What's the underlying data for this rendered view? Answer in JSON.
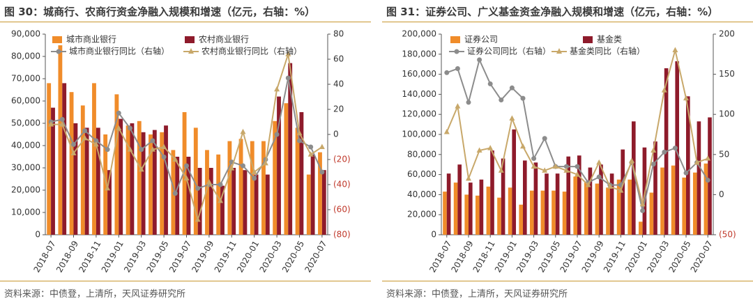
{
  "colors": {
    "bar1": "#f08c2a",
    "bar2": "#8e1b2b",
    "line1": "#8c8c8c",
    "line2": "#c8a86a",
    "rule": "#c8962d",
    "negative_tick": "#c0392b"
  },
  "left": {
    "title": "图 30：城商行、农商行资金净融入规模和增速（亿元，右轴：%）",
    "source": "资料来源：中债登，上清所，天风证券研究所"
  },
  "right": {
    "title": "图 31：证券公司、广义基金资金净融入规模和增速（亿元，右轴：%）",
    "source": "资料来源：中债登，上清所，天风证券研究所"
  },
  "chart_data": [
    {
      "type": "bar",
      "categories": [
        "2018-07",
        "2018-08",
        "2018-09",
        "2018-10",
        "2018-11",
        "2018-12",
        "2019-01",
        "2019-02",
        "2019-03",
        "2019-04",
        "2019-05",
        "2019-06",
        "2019-07",
        "2019-08",
        "2019-09",
        "2019-10",
        "2019-11",
        "2019-12",
        "2020-01",
        "2020-02",
        "2020-03",
        "2020-04",
        "2020-05",
        "2020-06",
        "2020-07"
      ],
      "x_tick_labels": [
        "2018-07",
        "2018-09",
        "2018-11",
        "2019-01",
        "2019-03",
        "2019-05",
        "2019-07",
        "2019-09",
        "2019-11",
        "2020-01",
        "2020-03",
        "2020-05",
        "2020-07"
      ],
      "series": [
        {
          "name": "城市商业银行",
          "kind": "bar",
          "axis": "left",
          "color": "#f08c2a",
          "values": [
            68000,
            85000,
            64000,
            58000,
            68000,
            45000,
            63000,
            49000,
            51000,
            45000,
            46000,
            38000,
            55000,
            48000,
            38000,
            36000,
            42000,
            43000,
            42000,
            42000,
            51000,
            59000,
            48000,
            27000,
            37000
          ]
        },
        {
          "name": "农村商业银行",
          "kind": "bar",
          "axis": "left",
          "color": "#8e1b2b",
          "values": [
            57000,
            68000,
            50000,
            48000,
            48000,
            29000,
            52000,
            50000,
            46000,
            47000,
            49000,
            35000,
            35000,
            30000,
            30000,
            22000,
            30000,
            29000,
            27000,
            27000,
            62000,
            77000,
            55000,
            36000,
            29000
          ]
        },
        {
          "name": "城市商业银行同比（右轴）",
          "kind": "line",
          "axis": "right",
          "color": "#8c8c8c",
          "marker": "circle",
          "values": [
            10,
            12,
            -8,
            3,
            -5,
            -12,
            17,
            5,
            -12,
            -5,
            -18,
            -47,
            -25,
            -43,
            -40,
            -40,
            -22,
            -25,
            -35,
            -20,
            0,
            45,
            -5,
            -10,
            -30
          ]
        },
        {
          "name": "农村商业银行同比（右轴）",
          "kind": "line",
          "axis": "right",
          "color": "#c8a86a",
          "marker": "triangle",
          "values": [
            8,
            8,
            -15,
            -3,
            -8,
            -43,
            5,
            -12,
            -28,
            -12,
            -10,
            -20,
            -35,
            -68,
            -38,
            -53,
            -27,
            2,
            -30,
            -23,
            36,
            64,
            1,
            -16,
            -10
          ]
        }
      ],
      "y_left": {
        "min": 0,
        "max": 90000,
        "step": 10000,
        "ticks": [
          "0",
          "10,000",
          "20,000",
          "30,000",
          "40,000",
          "50,000",
          "60,000",
          "70,000",
          "80,000",
          "90,000"
        ]
      },
      "y_right": {
        "min": -80,
        "max": 80,
        "step": 20,
        "ticks": [
          "(80)",
          "(60)",
          "(40)",
          "(20)",
          "0",
          "20",
          "40",
          "60",
          "80"
        ]
      },
      "legend": "top",
      "grid": false
    },
    {
      "type": "bar",
      "categories": [
        "2018-07",
        "2018-08",
        "2018-09",
        "2018-10",
        "2018-11",
        "2018-12",
        "2019-01",
        "2019-02",
        "2019-03",
        "2019-04",
        "2019-05",
        "2019-06",
        "2019-07",
        "2019-08",
        "2019-09",
        "2019-10",
        "2019-11",
        "2019-12",
        "2020-01",
        "2020-02",
        "2020-03",
        "2020-04",
        "2020-05",
        "2020-06",
        "2020-07"
      ],
      "x_tick_labels": [
        "2018-07",
        "2018-09",
        "2018-11",
        "2019-01",
        "2019-03",
        "2019-05",
        "2019-07",
        "2019-09",
        "2019-11",
        "2020-01",
        "2020-03",
        "2020-05",
        "2020-07"
      ],
      "series": [
        {
          "name": "证券公司",
          "kind": "bar",
          "axis": "left",
          "color": "#f08c2a",
          "values": [
            43000,
            52000,
            40000,
            39000,
            48000,
            37000,
            47000,
            30000,
            44000,
            44000,
            44000,
            43000,
            58000,
            52000,
            51000,
            47000,
            55000,
            55000,
            13000,
            42000,
            67000,
            69000,
            57000,
            62000,
            71000
          ]
        },
        {
          "name": "基金类",
          "kind": "bar",
          "axis": "left",
          "color": "#8e1b2b",
          "values": [
            61000,
            70000,
            52000,
            55000,
            84000,
            76000,
            105000,
            74000,
            72000,
            61000,
            61000,
            78000,
            79000,
            67000,
            70000,
            61000,
            85000,
            113000,
            87000,
            93000,
            166000,
            173000,
            138000,
            113000,
            117000
          ]
        },
        {
          "name": "证券公司同比（右轴）",
          "kind": "line",
          "axis": "right",
          "color": "#8c8c8c",
          "marker": "circle",
          "values": [
            152,
            157,
            115,
            168,
            138,
            118,
            133,
            120,
            45,
            70,
            35,
            35,
            35,
            15,
            22,
            12,
            12,
            40,
            -20,
            38,
            53,
            58,
            27,
            40,
            18
          ]
        },
        {
          "name": "基金类同比（右轴）",
          "kind": "line",
          "axis": "right",
          "color": "#c8a86a",
          "marker": "triangle",
          "values": [
            78,
            110,
            20,
            55,
            58,
            30,
            95,
            60,
            35,
            30,
            35,
            30,
            25,
            12,
            40,
            10,
            5,
            42,
            -12,
            55,
            130,
            180,
            120,
            40,
            45
          ]
        }
      ],
      "y_left": {
        "min": 0,
        "max": 200000,
        "step": 20000,
        "ticks": [
          "0",
          "20,000",
          "40,000",
          "60,000",
          "80,000",
          "100,000",
          "120,000",
          "140,000",
          "160,000",
          "180,000",
          "200,000"
        ]
      },
      "y_right": {
        "min": -50,
        "max": 200,
        "step": 50,
        "ticks": [
          "(50)",
          "0",
          "50",
          "100",
          "150",
          "200"
        ]
      },
      "legend": "top",
      "grid": false
    }
  ]
}
